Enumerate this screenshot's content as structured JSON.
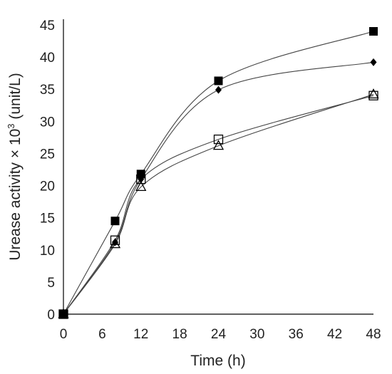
{
  "chart_data": {
    "type": "line",
    "title": "",
    "xlabel": "Time (h)",
    "ylabel_main": "Urease activity × 10",
    "ylabel_exp": "3",
    "ylabel_unit": " (unit/L)",
    "xlim": [
      0,
      48
    ],
    "ylim": [
      0,
      45
    ],
    "xticks": [
      "0",
      "6",
      "12",
      "18",
      "24",
      "30",
      "36",
      "42",
      "48"
    ],
    "yticks": [
      "0",
      "5",
      "10",
      "15",
      "20",
      "25",
      "30",
      "35",
      "40",
      "45"
    ],
    "grid": false,
    "legend": "none",
    "x": [
      0,
      8,
      12,
      24,
      48
    ],
    "series": [
      {
        "marker": "filled-square",
        "color": "#000000",
        "values": [
          0,
          14.5,
          21.8,
          36.3,
          44.0
        ]
      },
      {
        "marker": "filled-diamond",
        "color": "#000000",
        "values": [
          0,
          11.2,
          21.0,
          34.9,
          39.2
        ]
      },
      {
        "marker": "open-square",
        "color": "#000000",
        "values": [
          0,
          11.5,
          21.0,
          27.2,
          34.0
        ]
      },
      {
        "marker": "open-triangle",
        "color": "#000000",
        "values": [
          0,
          10.9,
          19.8,
          26.2,
          34.2
        ]
      }
    ]
  }
}
